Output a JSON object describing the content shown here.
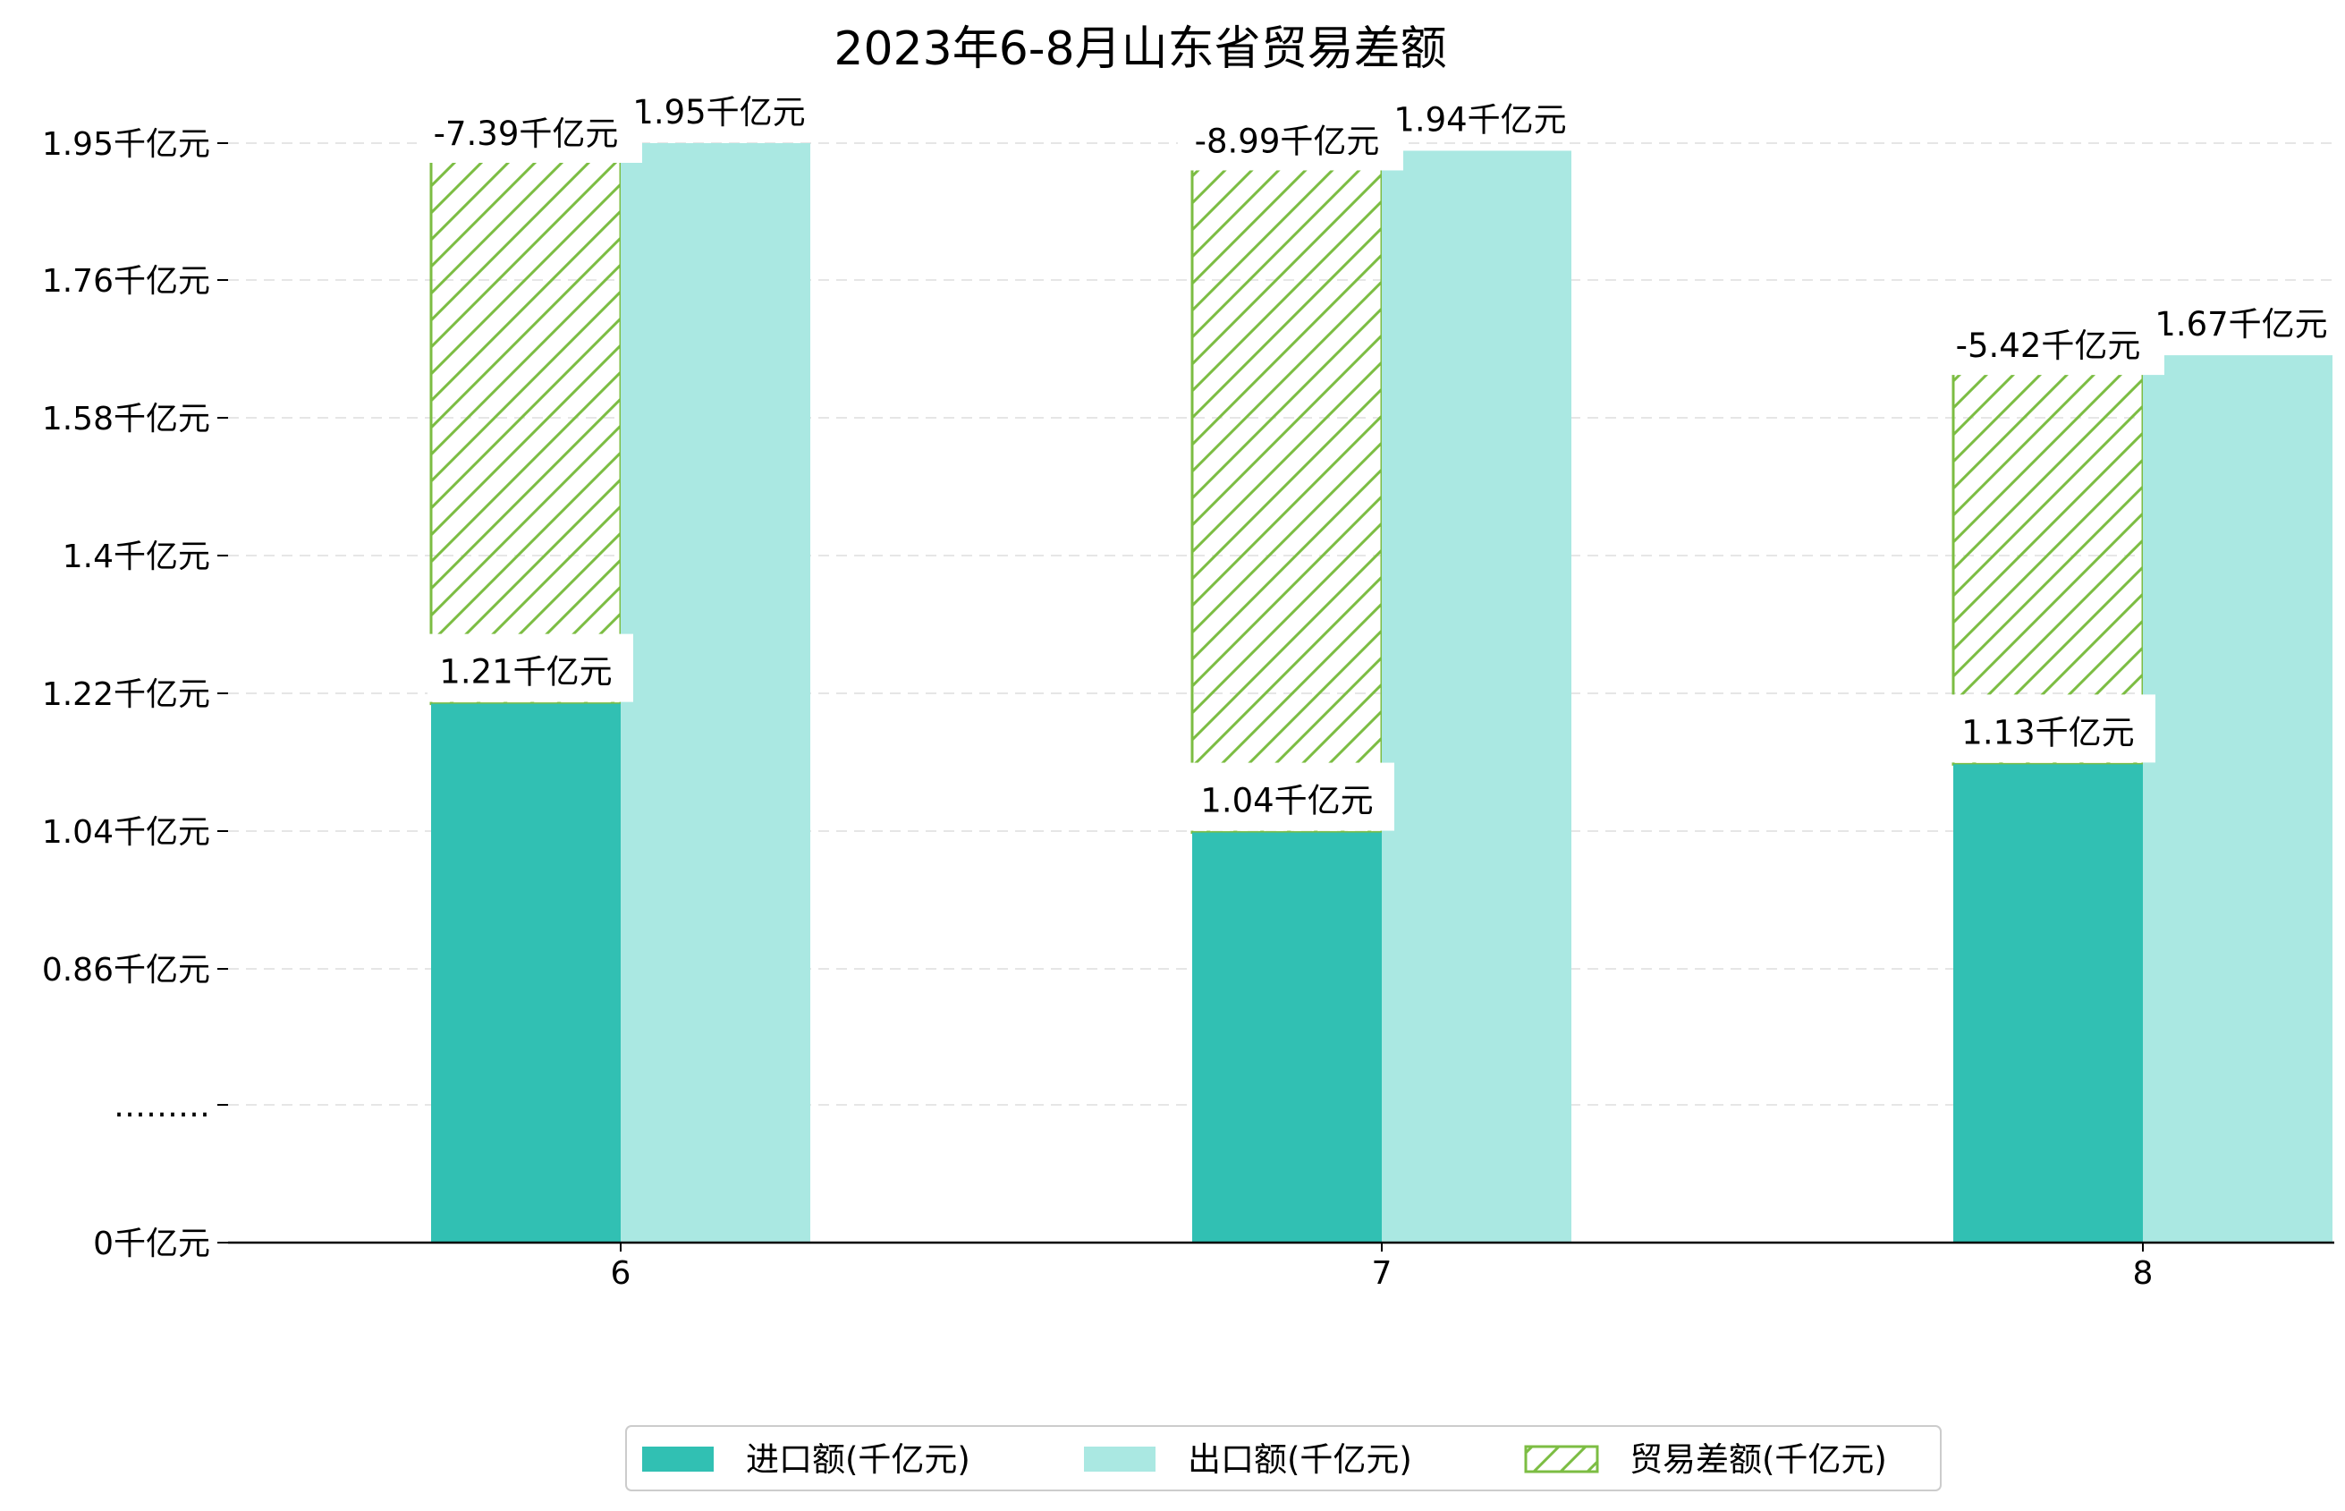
{
  "chart_data": {
    "type": "bar",
    "title": "2023年6-8月山东省贸易差额",
    "xlabel": "",
    "ylabel": "",
    "categories": [
      "6",
      "7",
      "8"
    ],
    "series": [
      {
        "name": "进口额(千亿元)",
        "color": "#31c0b3",
        "values": [
          1.21,
          1.04,
          1.13
        ],
        "labels": [
          "1.21千亿元",
          "1.04千亿元",
          "1.13千亿元"
        ]
      },
      {
        "name": "出口额(千亿元)",
        "color": "#aae8e2",
        "values": [
          1.95,
          1.94,
          1.67
        ],
        "labels": [
          "1.95千亿元",
          "1.94千亿元",
          "1.67千亿元"
        ]
      },
      {
        "name": "贸易差额(千亿元)",
        "color": "#7cbd43",
        "values": [
          -7.39,
          -8.99,
          -5.42
        ],
        "labels": [
          "-7.39千亿元",
          "-8.99千亿元",
          "-5.42千亿元"
        ]
      }
    ],
    "yticks": [
      {
        "label": "0千亿元",
        "value": 0
      },
      {
        "label": "………",
        "value": null
      },
      {
        "label": "0.86千亿元",
        "value": 0.86
      },
      {
        "label": "1.04千亿元",
        "value": 1.04
      },
      {
        "label": "1.22千亿元",
        "value": 1.22
      },
      {
        "label": "1.4千亿元",
        "value": 1.4
      },
      {
        "label": "1.58千亿元",
        "value": 1.58
      },
      {
        "label": "1.76千亿元",
        "value": 1.76
      },
      {
        "label": "1.95千亿元",
        "value": 1.95
      }
    ],
    "axis_break": true,
    "grid": true,
    "legend_position": "bottom-center"
  }
}
